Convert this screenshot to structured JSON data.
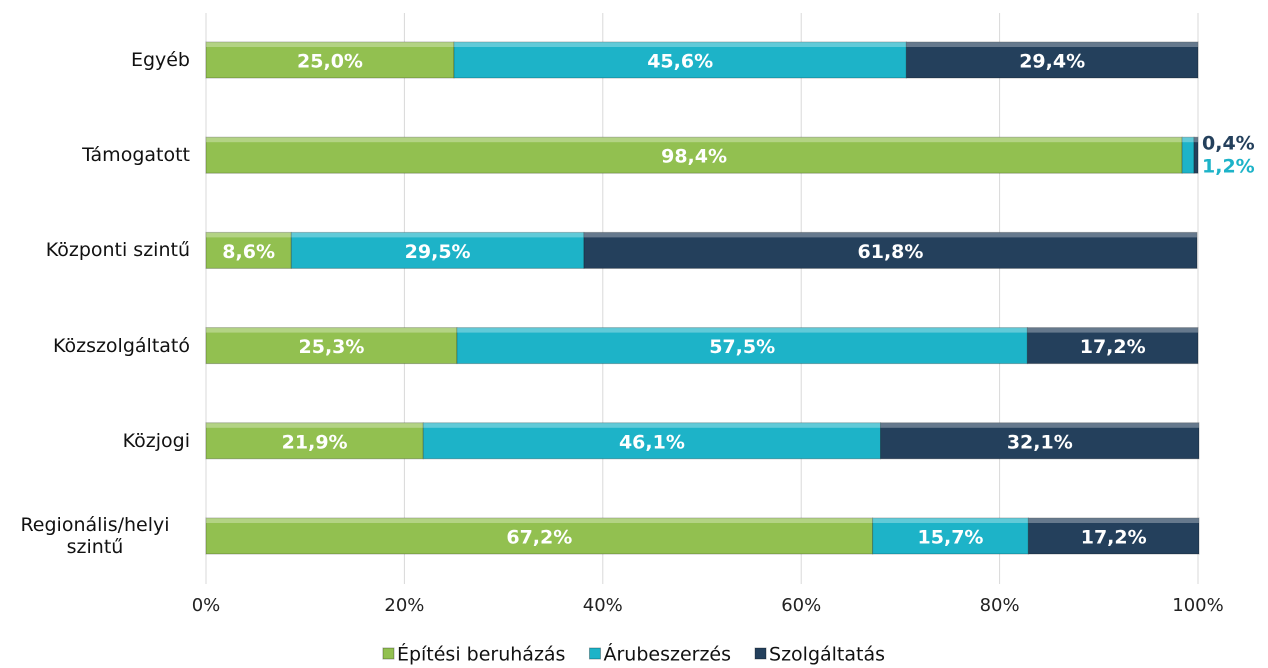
{
  "chart_data": {
    "type": "stacked_barh",
    "categories": [
      "Egyéb",
      "Támogatott",
      "Központi szintű",
      "Közszolgáltató",
      "Közjogi",
      "Regionális/helyi szintű"
    ],
    "series": [
      {
        "name": "Építési beruházás",
        "color": "#92c050",
        "values": [
          25.0,
          98.4,
          8.6,
          25.3,
          21.9,
          67.2
        ],
        "value_labels": [
          "25,0%",
          "98,4%",
          "8,6%",
          "25,3%",
          "21,9%",
          "67,2%"
        ]
      },
      {
        "name": "Árubeszerzés",
        "color": "#1db3c8",
        "values": [
          45.6,
          1.2,
          29.5,
          57.5,
          46.1,
          15.7
        ],
        "value_labels": [
          "45,6%",
          "1,2%",
          "29,5%",
          "57,5%",
          "46,1%",
          "15,7%"
        ]
      },
      {
        "name": "Szolgáltatás",
        "color": "#24405c",
        "values": [
          29.4,
          0.4,
          61.8,
          17.2,
          32.1,
          17.2
        ],
        "value_labels": [
          "29,4%",
          "0,4%",
          "61,8%",
          "17,2%",
          "32,1%",
          "17,2%"
        ]
      }
    ],
    "xlim": [
      0,
      100
    ],
    "xticks": [
      {
        "value": 0,
        "label": "0%"
      },
      {
        "value": 20,
        "label": "20%"
      },
      {
        "value": 40,
        "label": "40%"
      },
      {
        "value": 60,
        "label": "60%"
      },
      {
        "value": 80,
        "label": "80%"
      },
      {
        "value": 100,
        "label": "100%"
      }
    ],
    "grid": true,
    "legend": "bottom"
  }
}
